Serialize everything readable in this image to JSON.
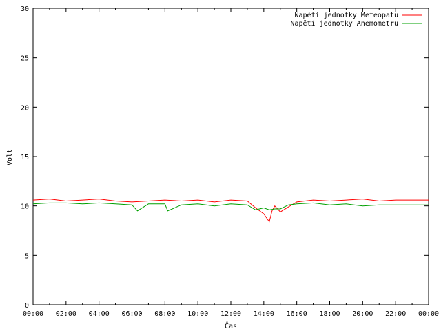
{
  "chart_data": {
    "type": "line",
    "xlabel": "Čas",
    "ylabel": "Volt",
    "xlim": [
      "00:00",
      "24:00"
    ],
    "ylim": [
      0,
      30
    ],
    "x_ticks": [
      "00:00",
      "02:00",
      "04:00",
      "06:00",
      "08:00",
      "10:00",
      "12:00",
      "14:00",
      "16:00",
      "18:00",
      "20:00",
      "22:00",
      "00:00"
    ],
    "y_ticks": [
      0,
      5,
      10,
      15,
      20,
      25,
      30
    ],
    "grid": false,
    "legend_position": "top-right",
    "series": [
      {
        "name": "Napětí jednotky Meteopatu",
        "color": "#ff0000",
        "x": [
          "00:00",
          "01:00",
          "02:00",
          "03:00",
          "04:00",
          "05:00",
          "06:00",
          "07:00",
          "08:00",
          "09:00",
          "10:00",
          "11:00",
          "12:00",
          "13:00",
          "13:30",
          "14:00",
          "14:10",
          "14:20",
          "14:30",
          "14:40",
          "15:00",
          "15:30",
          "16:00",
          "17:00",
          "18:00",
          "19:00",
          "20:00",
          "21:00",
          "22:00",
          "23:00",
          "24:00"
        ],
        "values": [
          10.6,
          10.7,
          10.5,
          10.6,
          10.7,
          10.5,
          10.4,
          10.5,
          10.6,
          10.5,
          10.6,
          10.4,
          10.6,
          10.5,
          9.8,
          9.2,
          8.8,
          8.4,
          9.5,
          10.0,
          9.4,
          9.9,
          10.4,
          10.6,
          10.5,
          10.6,
          10.7,
          10.5,
          10.6,
          10.6,
          10.6
        ]
      },
      {
        "name": "Napětí jednotky Anemometru",
        "color": "#00a000",
        "x": [
          "00:00",
          "01:00",
          "02:00",
          "03:00",
          "04:00",
          "05:00",
          "06:00",
          "06:20",
          "07:00",
          "08:00",
          "08:10",
          "09:00",
          "10:00",
          "11:00",
          "12:00",
          "13:00",
          "13:30",
          "14:00",
          "14:20",
          "14:40",
          "15:00",
          "15:30",
          "16:00",
          "17:00",
          "18:00",
          "19:00",
          "20:00",
          "21:00",
          "22:00",
          "23:00",
          "24:00"
        ],
        "values": [
          10.2,
          10.3,
          10.3,
          10.2,
          10.3,
          10.2,
          10.1,
          9.5,
          10.2,
          10.2,
          9.5,
          10.1,
          10.2,
          10.0,
          10.2,
          10.1,
          9.6,
          9.8,
          9.6,
          9.7,
          9.7,
          10.1,
          10.2,
          10.3,
          10.1,
          10.2,
          10.0,
          10.1,
          10.1,
          10.1,
          10.1
        ]
      }
    ]
  }
}
